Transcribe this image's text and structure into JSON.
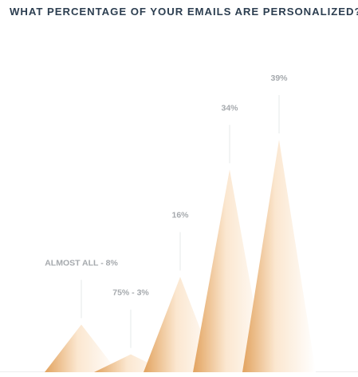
{
  "chart_data": {
    "type": "bar",
    "title": "WHAT PERCENTAGE OF YOUR EMAILS ARE PERSONALIZED?",
    "categories": [
      "ALMOST ALL",
      "75%",
      "",
      "",
      ""
    ],
    "values": [
      8,
      3,
      16,
      34,
      39
    ],
    "data_labels": [
      "ALMOST ALL - 8%",
      "75% - 3%",
      "16%",
      "34%",
      "39%"
    ],
    "ylim": [
      0,
      45
    ],
    "grid": false,
    "legend": "none",
    "bar_style": "peak",
    "colors": {
      "bar_dark": "#e2a35f",
      "bar_light": "#fbe7d0",
      "leader_line": "#e6e8ea",
      "baseline": "#eeeeee",
      "label_text": "#a5a9ad",
      "title_text": "#2c3e50"
    }
  }
}
